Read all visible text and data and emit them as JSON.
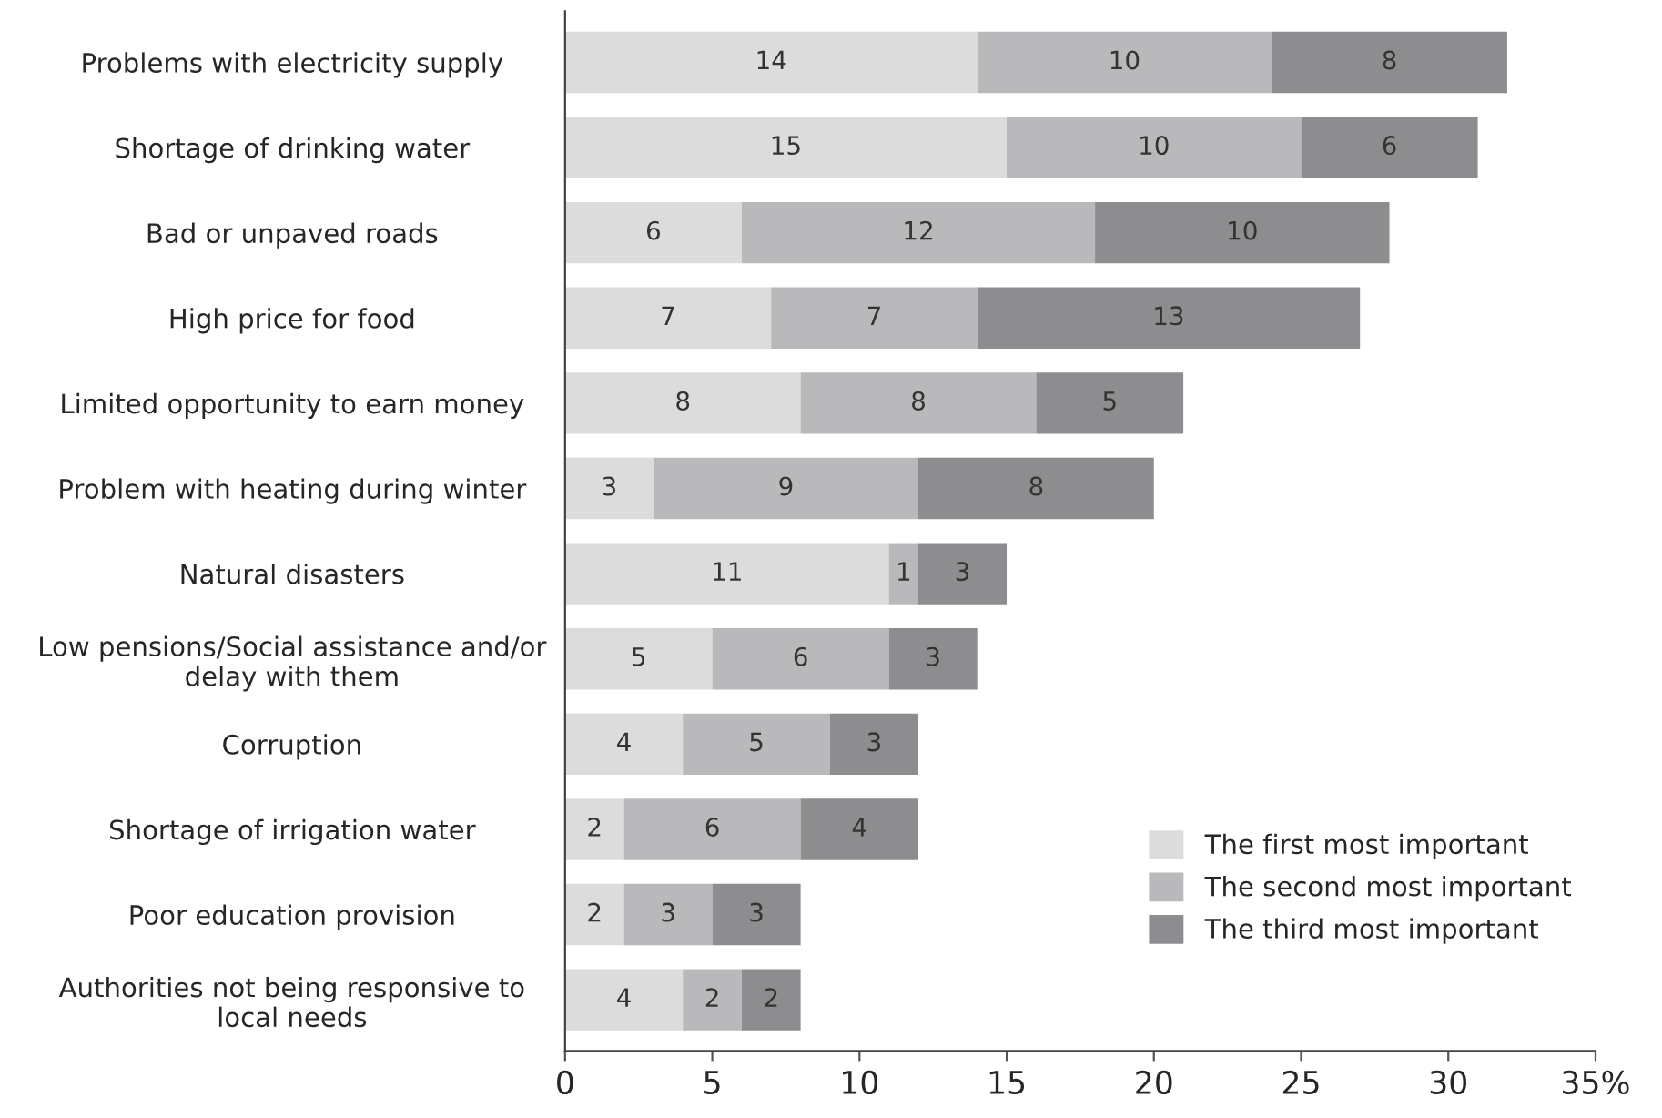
{
  "chart_data": {
    "type": "bar",
    "orientation": "horizontal",
    "stacked": true,
    "categories": [
      "Problems with electricity supply",
      "Shortage of drinking water",
      "Bad or unpaved roads",
      "High price for food",
      "Limited opportunity to earn money",
      "Problem with heating during winter",
      "Natural disasters",
      "Low pensions/Social assistance and/or\ndelay with them",
      "Corruption",
      "Shortage of irrigation water",
      "Poor education provision",
      "Authorities not being responsive to\nlocal needs"
    ],
    "series": [
      {
        "name": "The first most important",
        "color": "#dcdcdd",
        "values": [
          14,
          15,
          6,
          7,
          8,
          3,
          11,
          5,
          4,
          2,
          2,
          4
        ]
      },
      {
        "name": "The second most important",
        "color": "#b9b9bb",
        "values": [
          10,
          10,
          12,
          7,
          8,
          9,
          1,
          6,
          5,
          6,
          3,
          2
        ]
      },
      {
        "name": "The third most important",
        "color": "#8d8d90",
        "values": [
          8,
          6,
          10,
          13,
          5,
          8,
          3,
          3,
          3,
          4,
          3,
          2
        ]
      }
    ],
    "xlim": [
      0,
      35
    ],
    "xticks": [
      0,
      5,
      10,
      15,
      20,
      25,
      30,
      {
        "value": 35,
        "label": "35%"
      }
    ],
    "data_labels": true,
    "legend": "bottom right",
    "grid": false
  }
}
